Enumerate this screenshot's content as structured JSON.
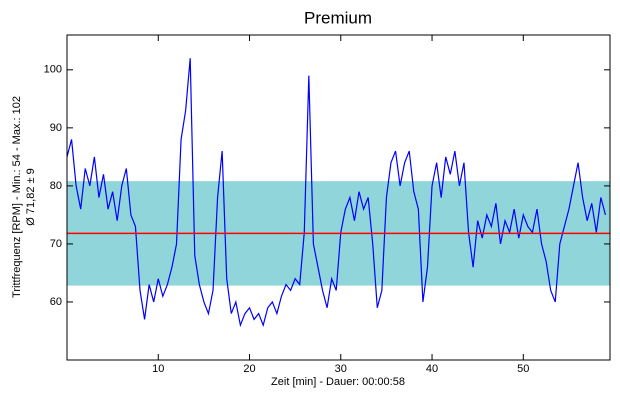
{
  "chart_data": {
    "type": "line",
    "title": "Premium",
    "y_label": "Trittfrequenz [RPM] - Min.: 54 - Max.: 102",
    "y_label_sub": "Ø 71,82 ± 9",
    "x_label": "Zeit [min] - Dauer: 00:00:58",
    "mean": 71.82,
    "std": 9,
    "mean_color": "#ff0000",
    "band_color": "#8fd5d9",
    "xlim": [
      0,
      59.5
    ],
    "ylim": [
      50,
      106
    ],
    "xticks": [
      10,
      20,
      30,
      40,
      50
    ],
    "yticks": [
      60,
      70,
      80,
      90,
      100
    ],
    "series": [
      {
        "name": "Trittfrequenz",
        "color": "#0000ff",
        "x": [
          0,
          0.5,
          1,
          1.5,
          2,
          2.5,
          3,
          3.5,
          4,
          4.5,
          5,
          5.5,
          6,
          6.5,
          7,
          7.5,
          8,
          8.5,
          9,
          9.5,
          10,
          10.5,
          11,
          11.5,
          12,
          12.5,
          13,
          13.5,
          14,
          14.5,
          15,
          15.5,
          16,
          16.5,
          17,
          17.5,
          18,
          18.5,
          19,
          19.5,
          20,
          20.5,
          21,
          21.5,
          22,
          22.5,
          23,
          23.5,
          24,
          24.5,
          25,
          25.5,
          26,
          26.5,
          27,
          27.5,
          28,
          28.5,
          29,
          29.5,
          30,
          30.5,
          31,
          31.5,
          32,
          32.5,
          33,
          33.5,
          34,
          34.5,
          35,
          35.5,
          36,
          36.5,
          37,
          37.5,
          38,
          38.5,
          39,
          39.5,
          40,
          40.5,
          41,
          41.5,
          42,
          42.5,
          43,
          43.5,
          44,
          44.5,
          45,
          45.5,
          46,
          46.5,
          47,
          47.5,
          48,
          48.5,
          49,
          49.5,
          50,
          50.5,
          51,
          51.5,
          52,
          52.5,
          53,
          53.5,
          54,
          54.5,
          55,
          55.5,
          56,
          56.5,
          57,
          57.5,
          58,
          58.5,
          59
        ],
        "values": [
          85,
          88,
          80,
          76,
          83,
          80,
          85,
          78,
          82,
          76,
          79,
          74,
          80,
          83,
          75,
          73,
          62,
          57,
          63,
          60,
          64,
          61,
          63,
          66,
          70,
          88,
          93,
          102,
          68,
          63,
          60,
          58,
          62,
          78,
          86,
          64,
          58,
          60,
          56,
          58,
          59,
          57,
          58,
          56,
          59,
          60,
          58,
          61,
          63,
          62,
          64,
          63,
          72,
          99,
          70,
          66,
          62,
          59,
          64,
          62,
          72,
          76,
          78,
          74,
          79,
          76,
          78,
          70,
          59,
          62,
          78,
          84,
          86,
          80,
          84,
          86,
          79,
          76,
          60,
          66,
          80,
          84,
          78,
          85,
          82,
          86,
          80,
          84,
          72,
          66,
          74,
          71,
          75,
          73,
          77,
          70,
          74,
          72,
          76,
          71,
          75,
          73,
          72,
          76,
          70,
          67,
          62,
          60,
          70,
          73,
          76,
          80,
          84,
          78,
          74,
          77,
          72,
          78,
          75
        ]
      }
    ]
  }
}
